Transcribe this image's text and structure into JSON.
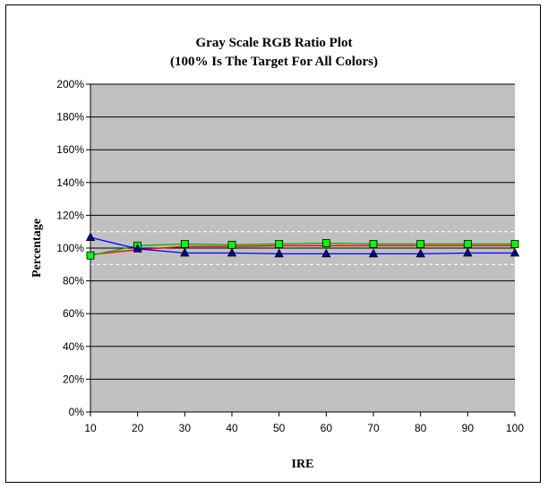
{
  "chart_data": {
    "type": "line",
    "title": "Gray Scale RGB Ratio Plot",
    "subtitle": "(100% Is The Target For All Colors)",
    "xlabel": "IRE",
    "ylabel": "Percentage",
    "x": [
      10,
      20,
      30,
      40,
      50,
      60,
      70,
      80,
      90,
      100
    ],
    "x_tick_labels": [
      "10",
      "20",
      "30",
      "40",
      "50",
      "60",
      "70",
      "80",
      "90",
      "100"
    ],
    "ylim": [
      0,
      200
    ],
    "y_ticks": [
      0,
      20,
      40,
      60,
      80,
      100,
      120,
      140,
      160,
      180,
      200
    ],
    "y_tick_labels": [
      "0%",
      "20%",
      "40%",
      "60%",
      "80%",
      "100%",
      "120%",
      "140%",
      "160%",
      "180%",
      "200%"
    ],
    "grid": true,
    "reference_lines": [
      90,
      110
    ],
    "plot_background": "#c0c0c0",
    "series": [
      {
        "color": "#ff0000",
        "marker": "none",
        "values": [
          96,
          99,
          101,
          101,
          101.5,
          101.5,
          101.5,
          101.5,
          101.5,
          101.5
        ]
      },
      {
        "color": "#00b000",
        "marker": "square",
        "marker_fill": "#00ff00",
        "values": [
          95.5,
          101.5,
          102.5,
          102,
          102.5,
          103,
          102.5,
          102.5,
          102.5,
          102.5
        ]
      },
      {
        "color": "#0000ff",
        "marker": "triangle",
        "marker_fill": "#0000a0",
        "values": [
          106.5,
          99.5,
          97,
          97,
          96.5,
          96.5,
          96.5,
          96.5,
          97,
          97
        ]
      }
    ]
  }
}
